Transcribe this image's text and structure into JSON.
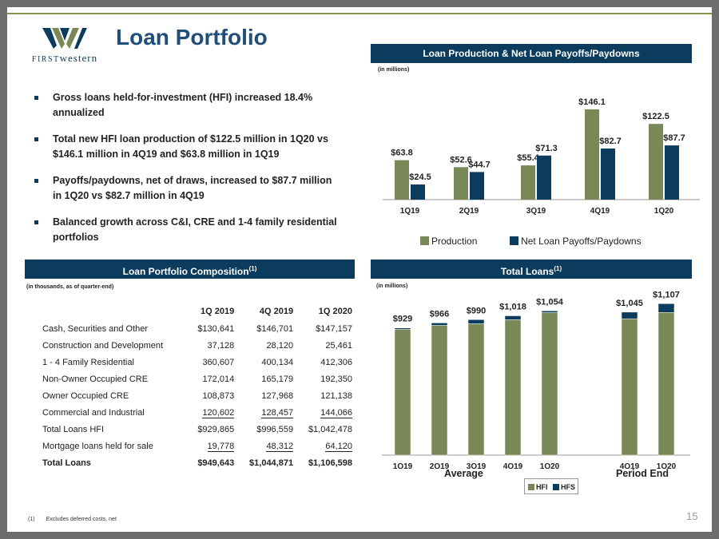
{
  "colors": {
    "accent": "#0b3c5d",
    "production": "#7a8757",
    "payoffs": "#0b3c5d",
    "hfi": "#7a8757",
    "hfs": "#0b3c5d",
    "rule": "#8c8f52"
  },
  "logo": {
    "first": "FIRST",
    "western": "western",
    "icon": "first-western-w-logo"
  },
  "title": "Loan Portfolio",
  "bullets": [
    "Gross loans held-for-investment (HFI) increased 18.4% annualized",
    "Total new HFI loan production of $122.5 million in 1Q20 vs $146.1 million in 4Q19 and $63.8 million in 1Q19",
    "Payoffs/paydowns, net of draws, increased to $87.7 million in 1Q20 vs $82.7 million in 4Q19",
    "Balanced growth across C&I, CRE and 1-4 family residential portfolios"
  ],
  "production_panel": {
    "header": "Loan Production & Net Loan Payoffs/Paydowns",
    "units": "(in millions)"
  },
  "composition_panel": {
    "header": "Loan Portfolio Composition",
    "header_sup": "(1)",
    "units": "(in thousands, as of quarter-end)"
  },
  "total_loans_panel": {
    "header": "Total Loans",
    "header_sup": "(1)",
    "units": "(in millions)",
    "group_average": "Average",
    "group_period_end": "Period End"
  },
  "composition_table": {
    "columns": [
      "1Q 2019",
      "4Q 2019",
      "1Q 2020"
    ],
    "rows": [
      {
        "label": "Cash, Securities and Other",
        "values": [
          "$130,641",
          "$146,701",
          "$147,157"
        ]
      },
      {
        "label": "Construction and Development",
        "values": [
          "37,128",
          "28,120",
          "25,461"
        ]
      },
      {
        "label": "1 - 4 Family Residential",
        "values": [
          "360,607",
          "400,134",
          "412,306"
        ]
      },
      {
        "label": "Non-Owner Occupied CRE",
        "values": [
          "172,014",
          "165,179",
          "192,350"
        ]
      },
      {
        "label": "Owner Occupied CRE",
        "values": [
          "108,873",
          "127,968",
          "121,138"
        ]
      },
      {
        "label": "Commercial and Industrial",
        "values": [
          "120,602",
          "128,457",
          "144,066"
        ]
      },
      {
        "label": "Total Loans HFI",
        "values": [
          "$929,865",
          "$996,559",
          "$1,042,478"
        ]
      },
      {
        "label": "Mortgage loans held for sale",
        "values": [
          "19,778",
          "48,312",
          "64,120"
        ]
      },
      {
        "label": "Total Loans",
        "values": [
          "$949,643",
          "$1,044,871",
          "$1,106,598"
        ]
      }
    ]
  },
  "chart_data": [
    {
      "type": "bar",
      "categories": [
        "1Q19",
        "2Q19",
        "3Q19",
        "4Q19",
        "1Q20"
      ],
      "series": [
        {
          "name": "Production",
          "values": [
            63.8,
            52.6,
            55.4,
            146.1,
            122.5
          ],
          "labels": [
            "$63.8",
            "$52.6",
            "$55.4",
            "$146.1",
            "$122.5"
          ]
        },
        {
          "name": "Net Loan Payoffs/Paydowns",
          "values": [
            24.5,
            44.7,
            71.3,
            82.7,
            87.7
          ],
          "labels": [
            "$24.5",
            "$44.7",
            "$71.3",
            "$82.7",
            "$87.7"
          ]
        }
      ],
      "ylim": [
        0,
        155
      ],
      "grid": false,
      "legend": "bottom"
    },
    {
      "type": "bar",
      "stacked": true,
      "categories": [
        "1Q19",
        "2Q19",
        "3Q19",
        "4Q19",
        "1Q20",
        "4Q19",
        "1Q20"
      ],
      "groups": [
        {
          "label": "Average",
          "categories": [
            0,
            1,
            2,
            3,
            4
          ]
        },
        {
          "label": "Period End",
          "categories": [
            5,
            6
          ]
        }
      ],
      "series": [
        {
          "name": "HFI",
          "values": [
            919,
            948,
            960,
            989,
            1041,
            996.6,
            1042.5
          ]
        },
        {
          "name": "HFS",
          "values": [
            10,
            18,
            30,
            29,
            13,
            48.3,
            64.1
          ]
        }
      ],
      "totals": [
        "$929",
        "$966",
        "$990",
        "$1,018",
        "$1,054",
        "$1,045",
        "$1,107"
      ],
      "ylim": [
        0,
        1120
      ],
      "grid": false,
      "legend": "bottom"
    }
  ],
  "footnote": {
    "marker": "(1)",
    "text": "Excludes deferred costs, net"
  },
  "page_number": "15"
}
